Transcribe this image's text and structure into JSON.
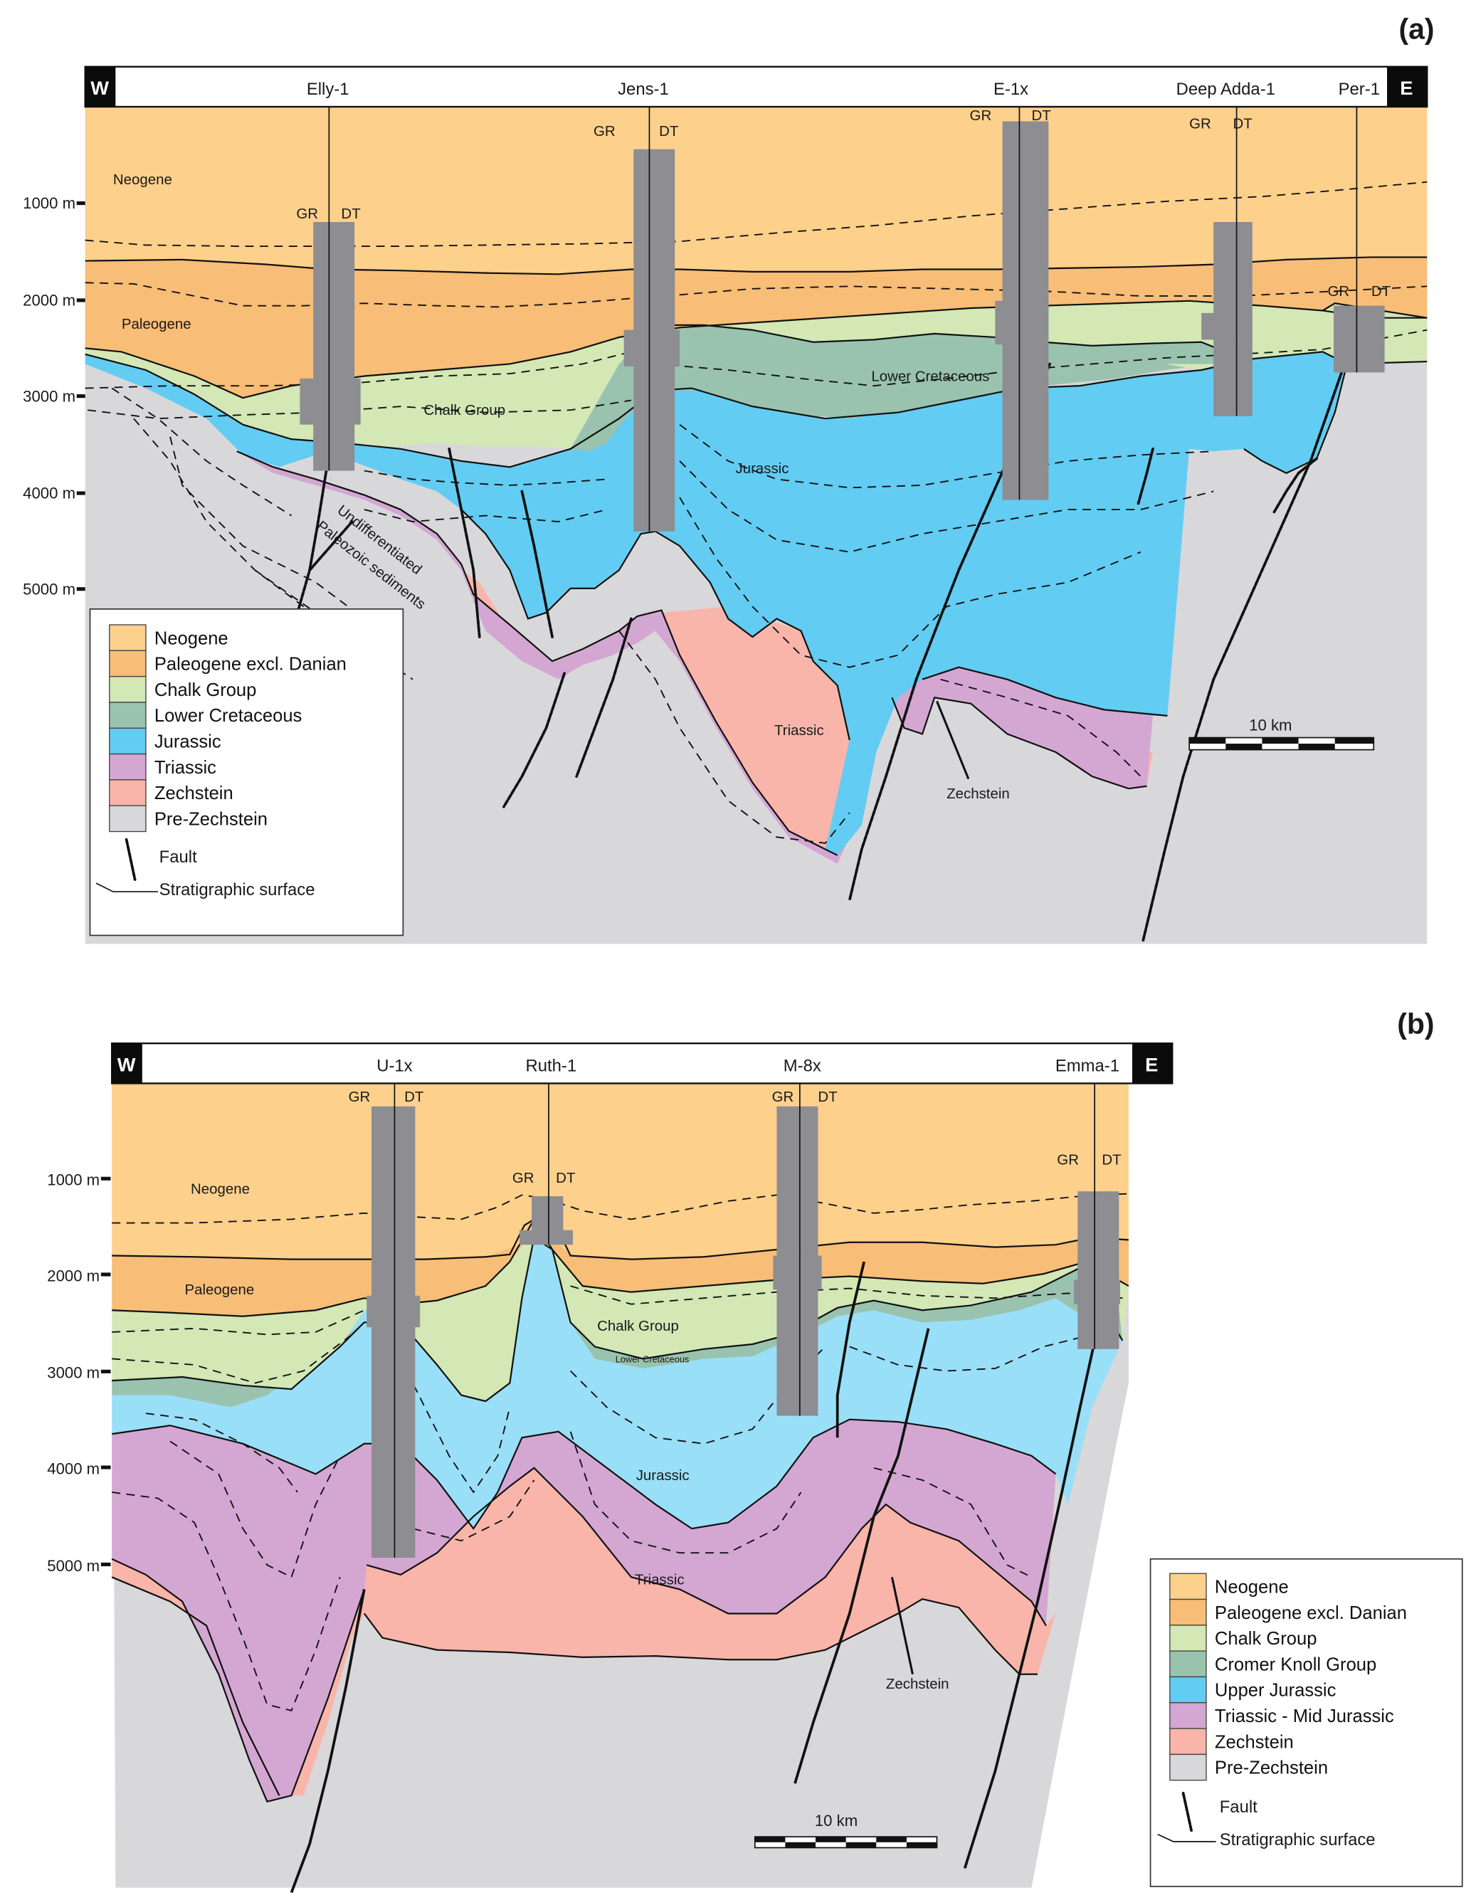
{
  "colors": {
    "neogene": "#FDD08C",
    "paleogene": "#F8BD77",
    "chalk": "#D3E8B5",
    "lower_cretaceous": "#99C3AE",
    "jurassic_a": "#63CCF2",
    "jurassic_b": "#99DFF8",
    "triassic": "#D4A7D3",
    "zechstein": "#F9B5AA",
    "pre_zechstein": "#D8D8DA",
    "log": "#8D8D92"
  },
  "panel_a": {
    "tag": "(a)",
    "west": "W",
    "east": "E",
    "wells": [
      "Elly-1",
      "Jens-1",
      "E-1x",
      "Deep Adda-1",
      "Per-1"
    ],
    "log_gr": "GR",
    "log_dt": "DT",
    "depth_ticks": [
      "1000 m",
      "2000 m",
      "3000 m",
      "4000 m",
      "5000 m"
    ],
    "unit_labels": {
      "neogene": "Neogene",
      "paleogene": "Paleogene",
      "chalk": "Chalk Group",
      "lower_cretaceous": "Lower Cretaceous",
      "jurassic": "Jurassic",
      "triassic": "Triassic",
      "zechstein": "Zechstein",
      "paleozoic_line1": "Undifferentiated",
      "paleozoic_line2": "Paleozoic sediments"
    },
    "scale_bar": "10 km",
    "legend": {
      "items": [
        {
          "label": "Neogene",
          "color": "#FDD08C"
        },
        {
          "label": "Paleogene excl. Danian",
          "color": "#F8BD77"
        },
        {
          "label": "Chalk Group",
          "color": "#D3E8B5"
        },
        {
          "label": "Lower Cretaceous",
          "color": "#99C3AE"
        },
        {
          "label": "Jurassic",
          "color": "#63CCF2"
        },
        {
          "label": "Triassic",
          "color": "#D4A7D3"
        },
        {
          "label": "Zechstein",
          "color": "#F9B5AA"
        },
        {
          "label": "Pre-Zechstein",
          "color": "#D8D8DA"
        }
      ],
      "fault": "Fault",
      "strat_surface": "Stratigraphic surface"
    }
  },
  "panel_b": {
    "tag": "(b)",
    "west": "W",
    "east": "E",
    "wells": [
      "U-1x",
      "Ruth-1",
      "M-8x",
      "Emma-1"
    ],
    "log_gr": "GR",
    "log_dt": "DT",
    "depth_ticks": [
      "1000 m",
      "2000 m",
      "3000 m",
      "4000 m",
      "5000 m"
    ],
    "unit_labels": {
      "neogene": "Neogene",
      "paleogene": "Paleogene",
      "chalk": "Chalk Group",
      "lower_cretaceous": "Lower Cretaceous",
      "jurassic": "Jurassic",
      "triassic": "Triassic",
      "zechstein": "Zechstein"
    },
    "scale_bar": "10 km",
    "legend": {
      "items": [
        {
          "label": "Neogene",
          "color": "#FDD08C"
        },
        {
          "label": "Paleogene excl. Danian",
          "color": "#F8BD77"
        },
        {
          "label": "Chalk Group",
          "color": "#D3E8B5"
        },
        {
          "label": "Cromer Knoll Group",
          "color": "#99C3AE"
        },
        {
          "label": "Upper Jurassic",
          "color": "#63CCF2"
        },
        {
          "label": "Triassic - Mid Jurassic",
          "color": "#D4A7D3"
        },
        {
          "label": "Zechstein",
          "color": "#F9B5AA"
        },
        {
          "label": "Pre-Zechstein",
          "color": "#D8D8DA"
        }
      ],
      "fault": "Fault",
      "strat_surface": "Stratigraphic surface"
    }
  }
}
